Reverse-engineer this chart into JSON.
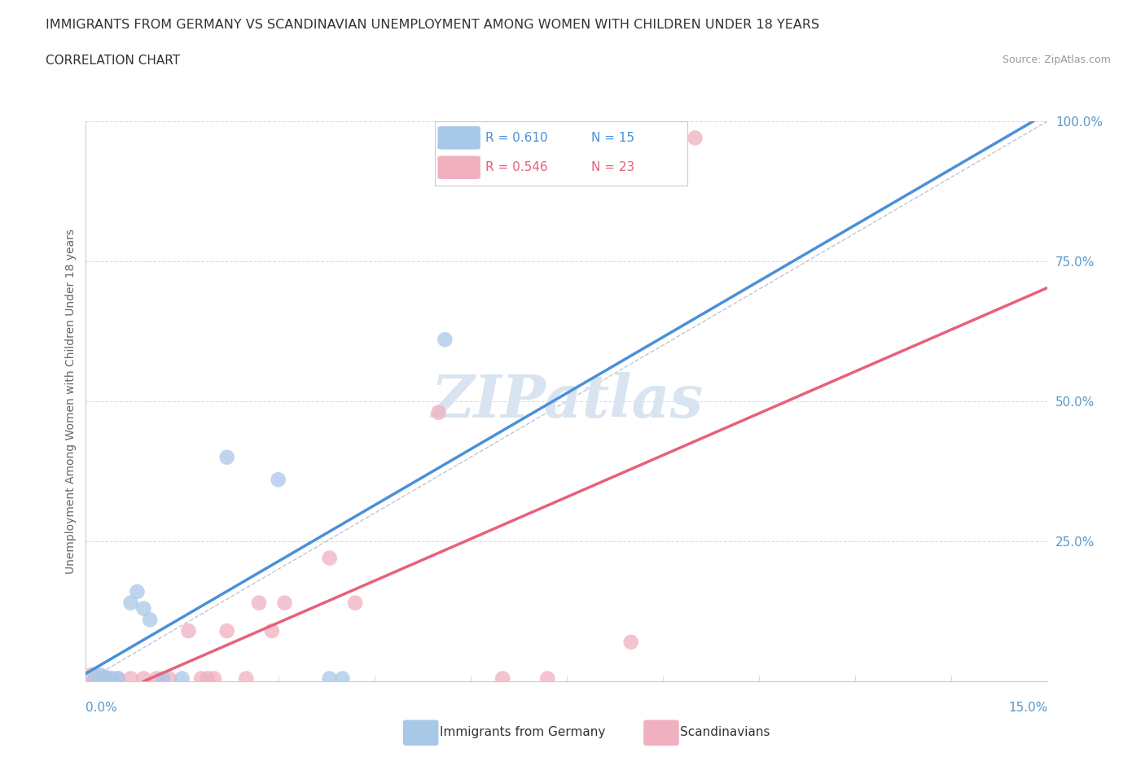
{
  "title": "IMMIGRANTS FROM GERMANY VS SCANDINAVIAN UNEMPLOYMENT AMONG WOMEN WITH CHILDREN UNDER 18 YEARS",
  "subtitle": "CORRELATION CHART",
  "source": "Source: ZipAtlas.com",
  "ylabel": "Unemployment Among Women with Children Under 18 years",
  "legend_entries": [
    {
      "label": "Immigrants from Germany",
      "R": "0.610",
      "N": "15",
      "color": "#a8c8e8",
      "line_color": "#4a90d9"
    },
    {
      "label": "Scandinavians",
      "R": "0.546",
      "N": "23",
      "color": "#f0b0c0",
      "line_color": "#e8607a"
    }
  ],
  "germany_points": [
    [
      0.002,
      0.005
    ],
    [
      0.003,
      0.005
    ],
    [
      0.004,
      0.005
    ],
    [
      0.005,
      0.005
    ],
    [
      0.007,
      0.14
    ],
    [
      0.008,
      0.16
    ],
    [
      0.009,
      0.13
    ],
    [
      0.01,
      0.11
    ],
    [
      0.012,
      0.005
    ],
    [
      0.015,
      0.005
    ],
    [
      0.022,
      0.4
    ],
    [
      0.03,
      0.36
    ],
    [
      0.038,
      0.005
    ],
    [
      0.04,
      0.005
    ],
    [
      0.056,
      0.61
    ]
  ],
  "germany_point_sizes": [
    400,
    250,
    200,
    180,
    180,
    180,
    180,
    180,
    180,
    180,
    180,
    180,
    180,
    180,
    180
  ],
  "scandinavian_points": [
    [
      0.001,
      0.005
    ],
    [
      0.003,
      0.005
    ],
    [
      0.005,
      0.005
    ],
    [
      0.007,
      0.005
    ],
    [
      0.009,
      0.005
    ],
    [
      0.011,
      0.005
    ],
    [
      0.013,
      0.005
    ],
    [
      0.016,
      0.09
    ],
    [
      0.018,
      0.005
    ],
    [
      0.019,
      0.005
    ],
    [
      0.02,
      0.005
    ],
    [
      0.022,
      0.09
    ],
    [
      0.025,
      0.005
    ],
    [
      0.027,
      0.14
    ],
    [
      0.029,
      0.09
    ],
    [
      0.031,
      0.14
    ],
    [
      0.038,
      0.22
    ],
    [
      0.042,
      0.14
    ],
    [
      0.055,
      0.48
    ],
    [
      0.065,
      0.005
    ],
    [
      0.072,
      0.005
    ],
    [
      0.085,
      0.07
    ],
    [
      0.095,
      0.97
    ]
  ],
  "scandinavian_point_sizes": [
    400,
    200,
    180,
    180,
    180,
    180,
    180,
    180,
    180,
    180,
    180,
    180,
    180,
    180,
    180,
    180,
    180,
    180,
    180,
    180,
    180,
    180,
    180
  ],
  "reference_line_color": "#b0b8c8",
  "grid_color": "#d8dce8",
  "background_color": "#ffffff",
  "watermark_text": "ZIPatlas",
  "watermark_color": "#d8e4f0",
  "xmin": 0.0,
  "xmax": 0.15,
  "ymin": 0.0,
  "ymax": 1.0,
  "y_ticks": [
    0.0,
    0.25,
    0.5,
    0.75,
    1.0
  ],
  "y_tick_labels": [
    "",
    "25.0%",
    "50.0%",
    "75.0%",
    "100.0%"
  ]
}
